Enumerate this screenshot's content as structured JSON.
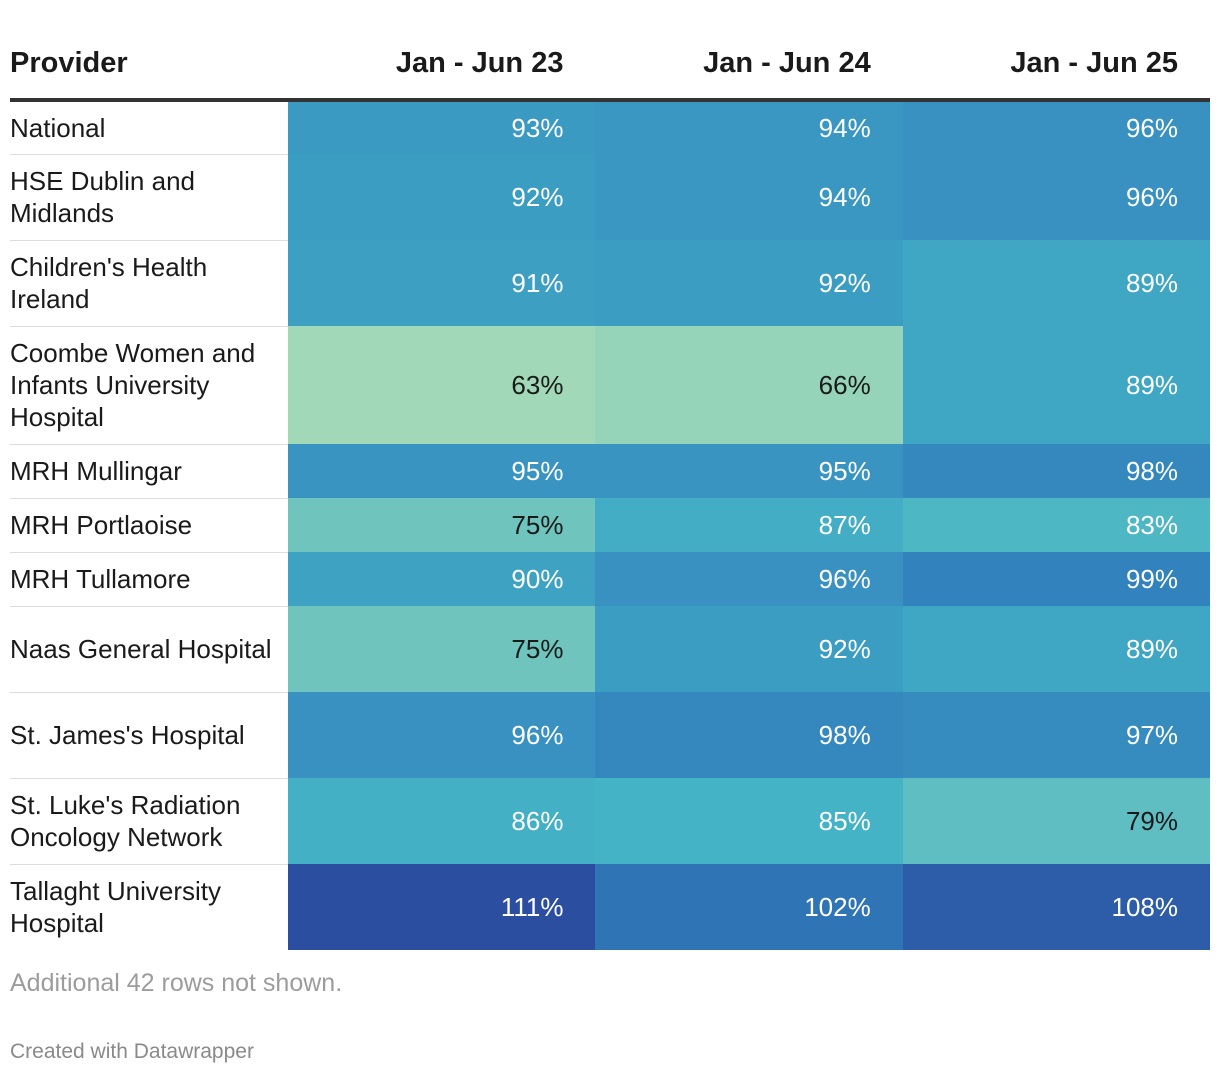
{
  "chart_data": {
    "type": "table",
    "columns": [
      "Provider",
      "Jan - Jun 23",
      "Jan - Jun 24",
      "Jan - Jun 25"
    ],
    "rows": [
      {
        "provider": "National",
        "values": [
          93,
          94,
          96
        ],
        "labels": [
          "93%",
          "94%",
          "96%"
        ]
      },
      {
        "provider": "HSE Dublin and Midlands",
        "values": [
          92,
          94,
          96
        ],
        "labels": [
          "92%",
          "94%",
          "96%"
        ]
      },
      {
        "provider": "Children's Health Ireland",
        "values": [
          91,
          92,
          89
        ],
        "labels": [
          "91%",
          "92%",
          "89%"
        ]
      },
      {
        "provider": "Coombe Women and Infants University Hospital",
        "values": [
          63,
          66,
          89
        ],
        "labels": [
          "63%",
          "66%",
          "89%"
        ]
      },
      {
        "provider": "MRH Mullingar",
        "values": [
          95,
          95,
          98
        ],
        "labels": [
          "95%",
          "95%",
          "98%"
        ]
      },
      {
        "provider": "MRH Portlaoise",
        "values": [
          75,
          87,
          83
        ],
        "labels": [
          "75%",
          "87%",
          "83%"
        ]
      },
      {
        "provider": "MRH Tullamore",
        "values": [
          90,
          96,
          99
        ],
        "labels": [
          "90%",
          "96%",
          "99%"
        ]
      },
      {
        "provider": "Naas General Hospital",
        "values": [
          75,
          92,
          89
        ],
        "labels": [
          "75%",
          "92%",
          "89%"
        ]
      },
      {
        "provider": "St. James's Hospital",
        "values": [
          96,
          98,
          97
        ],
        "labels": [
          "96%",
          "98%",
          "97%"
        ]
      },
      {
        "provider": "St. Luke's Radiation Oncology Network",
        "values": [
          86,
          85,
          79
        ],
        "labels": [
          "86%",
          "85%",
          "79%"
        ]
      },
      {
        "provider": "Tallaght University Hospital",
        "values": [
          111,
          102,
          108
        ],
        "labels": [
          "111%",
          "102%",
          "108%"
        ]
      }
    ],
    "color_scale": [
      {
        "value": 63,
        "color": "#a1d9b8"
      },
      {
        "value": 75,
        "color": "#6fc5bd"
      },
      {
        "value": 85,
        "color": "#44b3c6"
      },
      {
        "value": 90,
        "color": "#3ea3c3"
      },
      {
        "value": 96,
        "color": "#3891c0"
      },
      {
        "value": 99,
        "color": "#3283bd"
      },
      {
        "value": 102,
        "color": "#2f74b4"
      },
      {
        "value": 108,
        "color": "#2d5da8"
      },
      {
        "value": 111,
        "color": "#2c4ea0"
      }
    ],
    "dark_text_below": 80,
    "notes": "Additional 42 rows not shown.",
    "credit": "Created with Datawrapper"
  }
}
